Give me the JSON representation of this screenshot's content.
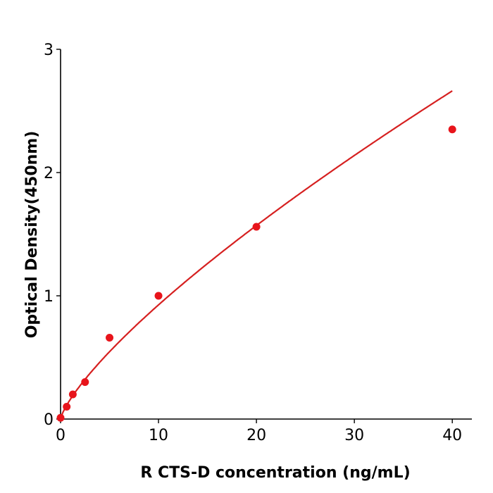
{
  "chart_data": {
    "type": "scatter",
    "title": "",
    "xlabel": "R  CTS-D concentration (ng/mL)",
    "ylabel": "Optical Density(450nm)",
    "xlim": [
      0,
      42
    ],
    "ylim": [
      0,
      3
    ],
    "xticks": [
      0,
      10,
      20,
      30,
      40
    ],
    "yticks": [
      0,
      1,
      2,
      3
    ],
    "grid": false,
    "color": "#e8141b",
    "line_color": "#d62020",
    "points": [
      {
        "x": 0,
        "y": 0.01
      },
      {
        "x": 0.625,
        "y": 0.1
      },
      {
        "x": 1.25,
        "y": 0.2
      },
      {
        "x": 2.5,
        "y": 0.3
      },
      {
        "x": 5,
        "y": 0.66
      },
      {
        "x": 10,
        "y": 1.0
      },
      {
        "x": 20,
        "y": 1.56
      },
      {
        "x": 40,
        "y": 2.35
      }
    ],
    "fit": "smooth curve through standards"
  }
}
